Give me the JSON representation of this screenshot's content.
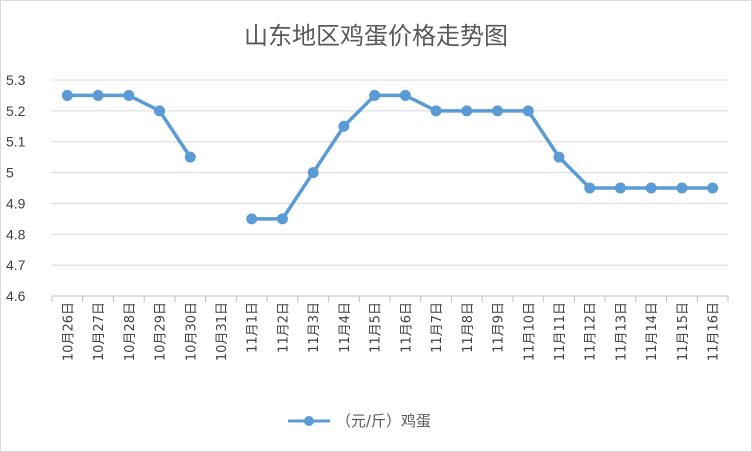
{
  "chart_data": {
    "type": "line",
    "title": "山东地区鸡蛋价格走势图",
    "categories": [
      "10月26日",
      "10月27日",
      "10月28日",
      "10月29日",
      "10月30日",
      "10月31日",
      "11月1日",
      "11月2日",
      "11月3日",
      "11月4日",
      "11月5日",
      "11月6日",
      "11月7日",
      "11月8日",
      "11月9日",
      "11月10日",
      "11月11日",
      "11月12日",
      "11月13日",
      "11月14日",
      "11月15日",
      "11月16日"
    ],
    "series": [
      {
        "name": "（元/斤）鸡蛋",
        "color": "#5b9bd5",
        "values": [
          5.25,
          5.25,
          5.25,
          5.2,
          5.05,
          null,
          4.85,
          4.85,
          5.0,
          5.15,
          5.25,
          5.25,
          5.2,
          5.2,
          5.2,
          5.2,
          5.05,
          4.95,
          4.95,
          4.95,
          4.95,
          4.95
        ]
      }
    ],
    "ylim": [
      4.6,
      5.3
    ],
    "yticks": [
      "4.6",
      "4.7",
      "4.8",
      "4.9",
      "5",
      "5.1",
      "5.2",
      "5.3"
    ],
    "grid": true,
    "legend_position": "bottom"
  }
}
